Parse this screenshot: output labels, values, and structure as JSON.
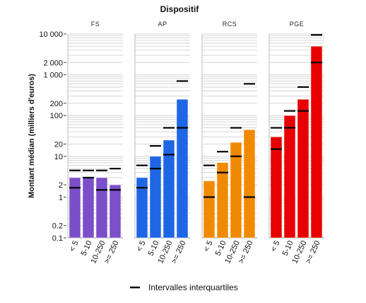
{
  "chart_data": {
    "type": "bar",
    "title": "Dispositif",
    "ylabel": "Montant médian (milliers d'euros)",
    "xlabel": "",
    "yscale": "log",
    "ylim": [
      0.1,
      10000
    ],
    "yticks": [
      {
        "value": 0.1,
        "label": "0.1"
      },
      {
        "value": 0.2,
        "label": "0.2"
      },
      {
        "value": 1,
        "label": "1"
      },
      {
        "value": 2,
        "label": "2"
      },
      {
        "value": 10,
        "label": "10"
      },
      {
        "value": 20,
        "label": "20"
      },
      {
        "value": 100,
        "label": "100"
      },
      {
        "value": 200,
        "label": "200"
      },
      {
        "value": 1000,
        "label": "1 000"
      },
      {
        "value": 2000,
        "label": "2 000"
      },
      {
        "value": 10000,
        "label": "10 000"
      }
    ],
    "categories": [
      "< 5",
      "5-10",
      "10-250",
      ">= 250"
    ],
    "legend": {
      "label": "Intervalles interquartiles",
      "position": "bottom"
    },
    "grid": true,
    "panels": [
      {
        "name": "FS",
        "color": "#7b4fc9",
        "values": [
          3,
          3,
          3,
          2
        ],
        "q1": [
          1.7,
          3,
          1.5,
          1.5
        ],
        "q3": [
          4.5,
          4.5,
          4.5,
          5
        ]
      },
      {
        "name": "AP",
        "color": "#1f66e5",
        "values": [
          3,
          10,
          25,
          250
        ],
        "q1": [
          1.7,
          5,
          11,
          50
        ],
        "q3": [
          6,
          18,
          50,
          700
        ]
      },
      {
        "name": "RCS",
        "color": "#f08a00",
        "values": [
          2.5,
          7,
          22,
          45
        ],
        "q1": [
          1,
          4,
          10,
          1
        ],
        "q3": [
          6,
          13,
          50,
          600
        ]
      },
      {
        "name": "PGE",
        "color": "#e80000",
        "values": [
          30,
          100,
          250,
          5000
        ],
        "q1": [
          15,
          50,
          130,
          2000
        ],
        "q3": [
          50,
          130,
          500,
          9500
        ]
      }
    ]
  }
}
